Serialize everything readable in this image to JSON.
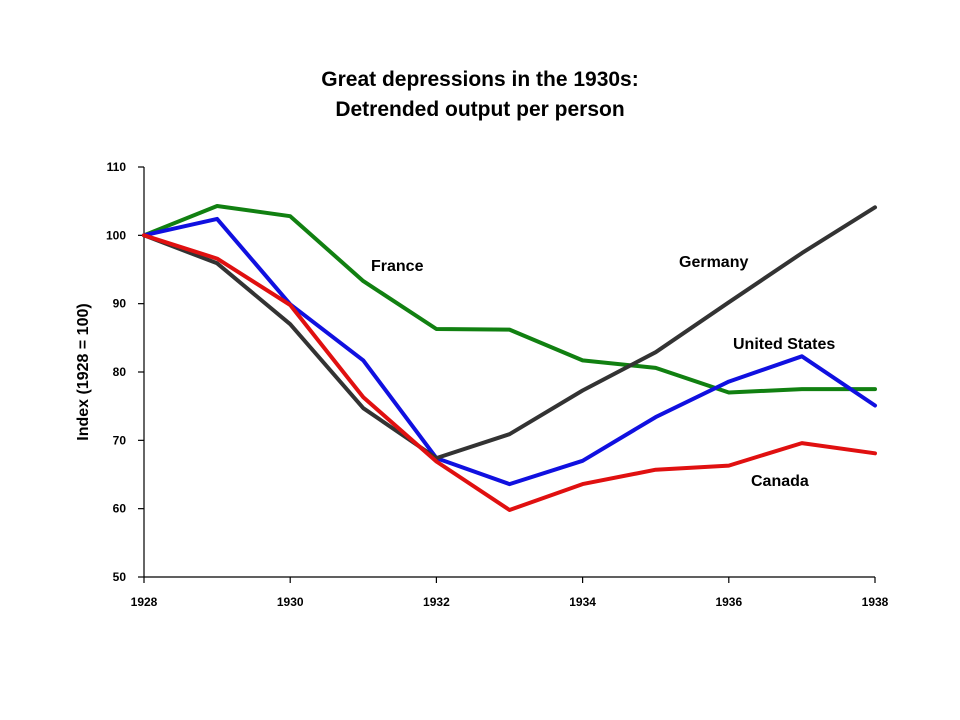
{
  "chart_data": {
    "type": "line",
    "title": "Great depressions in the 1930s:",
    "subtitle": "Detrended output per person",
    "xlabel": "",
    "ylabel": "Index (1928 = 100)",
    "xlim": [
      1928,
      1938
    ],
    "ylim": [
      50,
      110
    ],
    "x_ticks": [
      1928,
      1930,
      1932,
      1934,
      1936,
      1938
    ],
    "y_ticks": [
      50,
      60,
      70,
      80,
      90,
      100,
      110
    ],
    "grid": false,
    "legend": "none (series labeled directly on chart)",
    "x": [
      1928,
      1929,
      1930,
      1931,
      1932,
      1933,
      1934,
      1935,
      1936,
      1937,
      1938
    ],
    "series": [
      {
        "name": "France",
        "color": "#118011",
        "values": [
          100,
          104.3,
          102.8,
          93.3,
          86.3,
          86.2,
          81.7,
          80.6,
          77.0,
          77.5,
          77.5
        ]
      },
      {
        "name": "Germany",
        "color": "#333333",
        "values": [
          100,
          95.9,
          87.0,
          74.7,
          67.4,
          70.9,
          77.3,
          82.9,
          90.2,
          97.4,
          104.1
        ]
      },
      {
        "name": "United States",
        "color": "#1010e0",
        "values": [
          100,
          102.4,
          89.9,
          81.7,
          67.4,
          63.6,
          67.0,
          73.4,
          78.6,
          82.3,
          75.1
        ]
      },
      {
        "name": "Canada",
        "color": "#e01010",
        "values": [
          100,
          96.6,
          89.8,
          76.3,
          66.9,
          59.8,
          63.6,
          65.7,
          66.3,
          69.6,
          68.1
        ]
      }
    ]
  }
}
